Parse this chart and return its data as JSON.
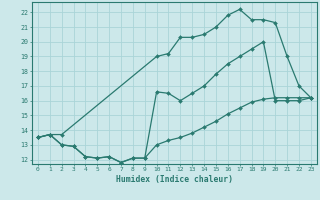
{
  "xlabel": "Humidex (Indice chaleur)",
  "bg_color": "#cce8ea",
  "grid_color": "#aad4d8",
  "line_color": "#2a7a70",
  "xlim": [
    -0.5,
    23.5
  ],
  "ylim": [
    11.7,
    22.7
  ],
  "yticks": [
    12,
    13,
    14,
    15,
    16,
    17,
    18,
    19,
    20,
    21,
    22
  ],
  "xticks": [
    0,
    1,
    2,
    3,
    4,
    5,
    6,
    7,
    8,
    9,
    10,
    11,
    12,
    13,
    14,
    15,
    16,
    17,
    18,
    19,
    20,
    21,
    22,
    23
  ],
  "line1_x": [
    0,
    1,
    2,
    10,
    11,
    12,
    13,
    14,
    15,
    16,
    17,
    18,
    19,
    20,
    21,
    22,
    23
  ],
  "line1_y": [
    13.5,
    13.7,
    13.7,
    19.0,
    19.2,
    20.3,
    20.3,
    20.5,
    21.0,
    21.8,
    22.2,
    21.5,
    21.5,
    21.3,
    19.0,
    17.0,
    16.2
  ],
  "line2_x": [
    0,
    1,
    2,
    3,
    4,
    5,
    6,
    7,
    8,
    9,
    10,
    11,
    12,
    13,
    14,
    15,
    16,
    17,
    18,
    19,
    20,
    21,
    22,
    23
  ],
  "line2_y": [
    13.5,
    13.7,
    13.0,
    12.9,
    12.2,
    12.1,
    12.2,
    11.8,
    12.1,
    12.1,
    16.6,
    16.5,
    16.0,
    16.5,
    17.0,
    17.8,
    18.5,
    19.0,
    19.5,
    20.0,
    16.0,
    16.0,
    16.0,
    16.2
  ],
  "line3_x": [
    0,
    1,
    2,
    3,
    4,
    5,
    6,
    7,
    8,
    9,
    10,
    11,
    12,
    13,
    14,
    15,
    16,
    17,
    18,
    19,
    20,
    21,
    22,
    23
  ],
  "line3_y": [
    13.5,
    13.7,
    13.0,
    12.9,
    12.2,
    12.1,
    12.2,
    11.8,
    12.1,
    12.1,
    13.0,
    13.3,
    13.5,
    13.8,
    14.2,
    14.6,
    15.1,
    15.5,
    15.9,
    16.1,
    16.2,
    16.2,
    16.2,
    16.2
  ]
}
